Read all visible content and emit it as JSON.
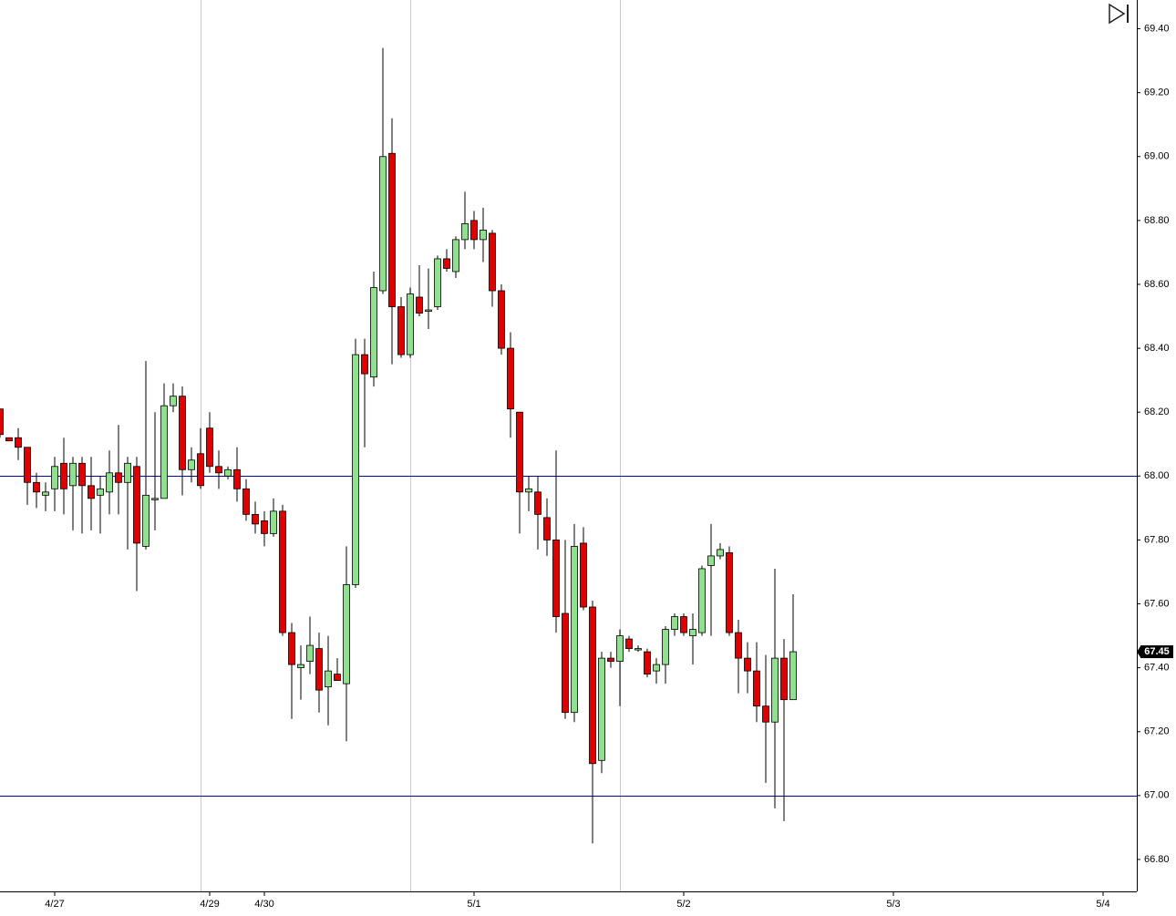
{
  "chart_data": {
    "type": "candlestick",
    "up_color": "#90e090",
    "down_color": "#e00000",
    "open": [
      68.21,
      68.12,
      68.12,
      68.09,
      67.98,
      67.94,
      67.96,
      68.04,
      67.97,
      68.04,
      67.97,
      67.94,
      67.95,
      68.01,
      67.98,
      68.03,
      67.78,
      67.93,
      67.93,
      68.22,
      68.25,
      68.02,
      68.07,
      68.15,
      68.03,
      68.0,
      68.02,
      67.96,
      67.88,
      67.86,
      67.82,
      67.89,
      67.51,
      67.4,
      67.42,
      67.46,
      67.34,
      67.38,
      67.35,
      67.66,
      68.38,
      68.31,
      68.58,
      69.01,
      68.53,
      68.38,
      68.56,
      68.52,
      68.53,
      68.68,
      68.64,
      68.74,
      68.8,
      68.74,
      68.76,
      68.58,
      68.4,
      68.2,
      67.95,
      67.95,
      67.87,
      67.8,
      67.57,
      67.26,
      67.79,
      67.59,
      67.11,
      67.43,
      67.42,
      67.49,
      67.46,
      67.45,
      67.39,
      67.41,
      67.52,
      67.56,
      67.5,
      67.51,
      67.72,
      67.75,
      67.76,
      67.51,
      67.43,
      67.39,
      67.28,
      67.23,
      67.43,
      67.3
    ],
    "high": [
      68.21,
      68.12,
      68.15,
      68.09,
      68.01,
      67.98,
      68.06,
      68.12,
      68.06,
      68.06,
      68.06,
      68.0,
      68.08,
      68.16,
      68.06,
      68.06,
      68.36,
      68.2,
      68.29,
      68.29,
      68.28,
      68.09,
      68.15,
      68.2,
      68.08,
      68.03,
      68.09,
      67.99,
      67.92,
      67.89,
      67.93,
      67.91,
      67.54,
      67.47,
      67.56,
      67.51,
      67.5,
      67.43,
      67.78,
      68.43,
      68.43,
      68.64,
      69.34,
      69.12,
      68.56,
      68.59,
      68.66,
      68.65,
      68.69,
      68.71,
      68.75,
      68.89,
      68.83,
      68.84,
      68.77,
      68.6,
      68.45,
      68.2,
      68.0,
      68.0,
      67.93,
      68.08,
      67.8,
      67.85,
      67.84,
      67.61,
      67.45,
      67.45,
      67.52,
      67.5,
      67.47,
      67.46,
      67.43,
      67.53,
      67.57,
      67.57,
      67.57,
      67.72,
      67.85,
      67.79,
      67.78,
      67.55,
      67.48,
      67.48,
      67.44,
      67.71,
      67.49,
      67.63
    ],
    "low": [
      68.12,
      68.11,
      68.05,
      67.91,
      67.9,
      67.89,
      67.89,
      67.88,
      67.83,
      67.82,
      67.83,
      67.82,
      67.88,
      67.88,
      67.77,
      67.64,
      67.77,
      67.83,
      67.93,
      68.2,
      67.94,
      67.98,
      67.96,
      68.01,
      67.96,
      67.99,
      67.92,
      67.86,
      67.82,
      67.78,
      67.81,
      67.5,
      67.24,
      67.3,
      67.38,
      67.26,
      67.22,
      67.37,
      67.17,
      67.65,
      68.09,
      68.28,
      68.57,
      68.35,
      68.37,
      68.37,
      68.5,
      68.46,
      68.52,
      68.64,
      68.62,
      68.71,
      68.71,
      68.67,
      68.53,
      68.38,
      68.12,
      67.82,
      67.89,
      67.77,
      67.75,
      67.51,
      67.24,
      67.23,
      67.58,
      66.85,
      67.07,
      67.4,
      67.28,
      67.45,
      67.45,
      67.37,
      67.35,
      67.35,
      67.5,
      67.5,
      67.41,
      67.5,
      67.5,
      67.74,
      67.5,
      67.32,
      67.32,
      67.23,
      67.04,
      66.96,
      66.92,
      67.3
    ],
    "close": [
      68.13,
      68.11,
      68.09,
      67.98,
      67.95,
      67.95,
      68.03,
      67.96,
      68.04,
      67.97,
      67.93,
      67.96,
      68.01,
      67.98,
      68.04,
      67.79,
      67.94,
      67.93,
      68.22,
      68.25,
      68.02,
      68.05,
      67.97,
      68.03,
      68.01,
      68.02,
      67.96,
      67.88,
      67.85,
      67.82,
      67.89,
      67.51,
      67.41,
      67.41,
      67.47,
      67.33,
      67.39,
      67.36,
      67.66,
      68.38,
      68.32,
      68.59,
      69.0,
      68.53,
      68.38,
      68.57,
      68.51,
      68.52,
      68.68,
      68.65,
      68.74,
      68.79,
      68.74,
      68.77,
      68.58,
      68.4,
      68.21,
      67.95,
      67.96,
      67.88,
      67.8,
      67.56,
      67.26,
      67.78,
      67.59,
      67.1,
      67.43,
      67.42,
      67.5,
      67.46,
      67.46,
      67.38,
      67.41,
      67.52,
      67.56,
      67.51,
      67.52,
      67.71,
      67.75,
      67.77,
      67.51,
      67.43,
      67.39,
      67.28,
      67.23,
      67.43,
      67.3,
      67.45
    ],
    "xlim": [
      0,
      124.7
    ],
    "xticks": [
      {
        "value": 6,
        "label": "4/27"
      },
      {
        "value": 23,
        "label": "4/29"
      },
      {
        "value": 29,
        "label": "4/30"
      },
      {
        "value": 52,
        "label": "5/1"
      },
      {
        "value": 75,
        "label": "5/2"
      },
      {
        "value": 98,
        "label": "5/3"
      },
      {
        "value": 121,
        "label": "5/4"
      }
    ],
    "session_lines": [
      22,
      45,
      68
    ],
    "ylim": [
      66.7,
      69.49
    ],
    "yticks": [
      {
        "value": 66.8,
        "label": "66.80"
      },
      {
        "value": 67,
        "label": "67.00"
      },
      {
        "value": 67.2,
        "label": "67.20"
      },
      {
        "value": 67.4,
        "label": "67.40"
      },
      {
        "value": 67.6,
        "label": "67.60"
      },
      {
        "value": 67.8,
        "label": "67.80"
      },
      {
        "value": 68,
        "label": "68.00"
      },
      {
        "value": 68.2,
        "label": "68.20"
      },
      {
        "value": 68.4,
        "label": "68.40"
      },
      {
        "value": 68.6,
        "label": "68.60"
      },
      {
        "value": 68.8,
        "label": "68.80"
      },
      {
        "value": 69,
        "label": "69.00"
      },
      {
        "value": 69.2,
        "label": "69.20"
      },
      {
        "value": 69.4,
        "label": "69.40"
      }
    ],
    "hlines": [
      68,
      67
    ],
    "hline_color": "#0000a0",
    "last_price": {
      "value": 67.45,
      "label": "67.45"
    }
  }
}
